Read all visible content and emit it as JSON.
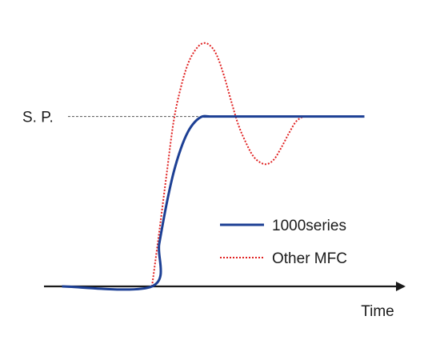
{
  "chart_data": {
    "type": "line",
    "title": "",
    "xlabel": "Time",
    "ylabel": "",
    "xlim": [
      0,
      10
    ],
    "ylim": [
      0,
      1.45
    ],
    "grid": false,
    "legend": "center-right",
    "reference_line": {
      "label": "S. P.",
      "y": 1.0,
      "style": "dashed",
      "color": "#555555"
    },
    "series": [
      {
        "name": "1000series",
        "color": "#1c3f94",
        "style": "solid",
        "x": [
          0.5,
          3.0,
          3.2,
          3.4,
          3.6,
          3.8,
          4.0,
          4.2,
          4.4,
          4.6,
          4.8,
          8.9
        ],
        "y": [
          0,
          0,
          0.25,
          0.48,
          0.67,
          0.81,
          0.91,
          0.97,
          1.0,
          1.0,
          1.0,
          1.0
        ]
      },
      {
        "name": "Other MFC",
        "color": "#e02020",
        "style": "dotted",
        "x": [
          3.0,
          3.2,
          3.4,
          3.6,
          3.8,
          4.0,
          4.2,
          4.4,
          4.6,
          4.8,
          5.0,
          5.2,
          5.4,
          5.6,
          5.8,
          6.0,
          6.2,
          6.4,
          6.6,
          6.8,
          7.0,
          7.2
        ],
        "y": [
          0,
          0.32,
          0.65,
          0.97,
          1.17,
          1.31,
          1.39,
          1.43,
          1.42,
          1.36,
          1.24,
          1.09,
          0.95,
          0.85,
          0.77,
          0.73,
          0.72,
          0.75,
          0.82,
          0.9,
          0.97,
          1.0
        ]
      }
    ]
  }
}
